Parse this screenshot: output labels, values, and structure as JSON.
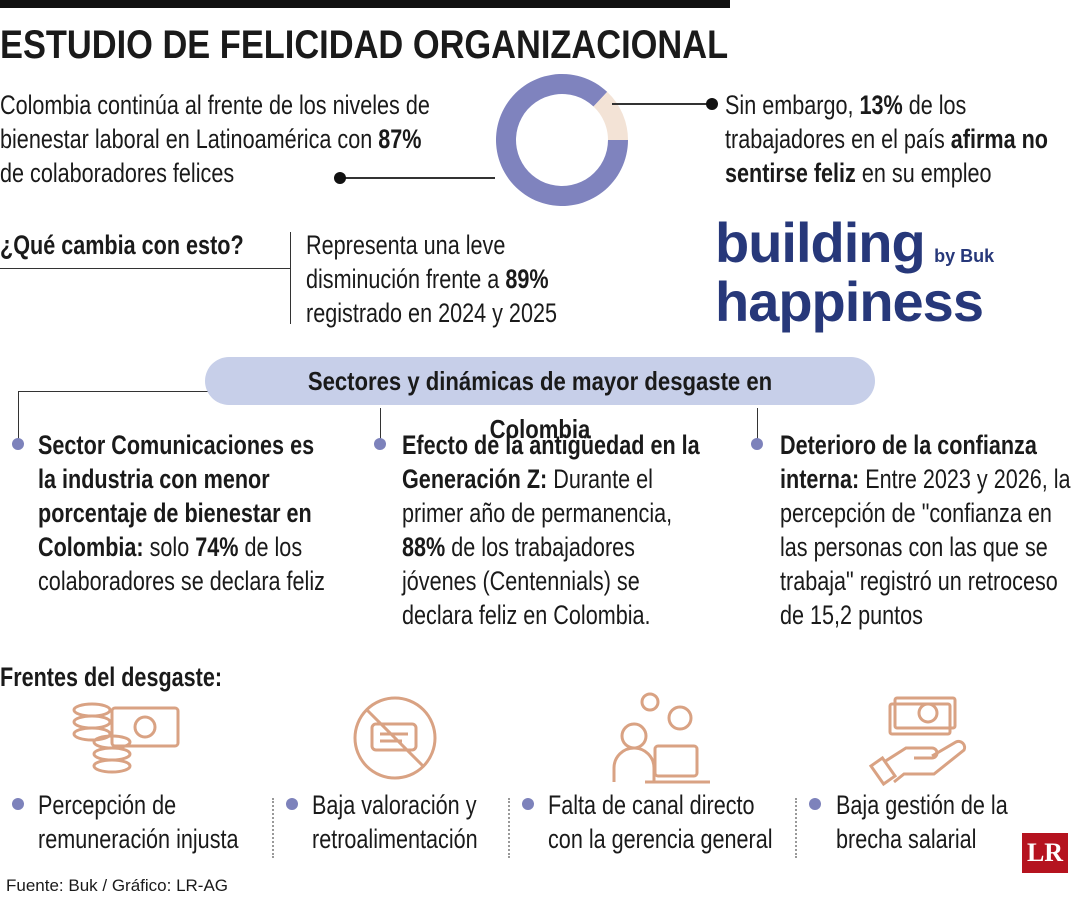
{
  "title": "ESTUDIO DE FELICIDAD ORGANIZACIONAL",
  "intro_left": [
    {
      "text": "Colombia continúa al frente de los niveles de bienestar laboral en Latinoamérica con ",
      "bold": false
    },
    {
      "text": "87%",
      "bold": true
    },
    {
      "text": " de colaboradores felices",
      "bold": false
    }
  ],
  "donut": {
    "values": [
      87,
      13
    ],
    "colors": [
      "#7f83be",
      "#f3e3d6"
    ]
  },
  "intro_right": [
    {
      "text": "Sin embargo, ",
      "bold": false
    },
    {
      "text": "13%",
      "bold": true
    },
    {
      "text": " de los trabajadores en el país ",
      "bold": false
    },
    {
      "text": "afirma no sentirse feliz",
      "bold": true
    },
    {
      "text": " en su empleo",
      "bold": false
    }
  ],
  "question": "¿Qué cambia con esto?",
  "answer": [
    {
      "text": "Representa una leve disminución frente a ",
      "bold": false
    },
    {
      "text": "89%",
      "bold": true
    },
    {
      "text": " registrado en 2024 y 2025",
      "bold": false
    }
  ],
  "logo": {
    "line1": "building",
    "by": "by Buk",
    "line2": "happiness"
  },
  "section_title": "Sectores y dinámicas de mayor desgaste en Colombia",
  "sectors": [
    [
      {
        "text": "Sector Comunicaciones es la industria con menor porcentaje de bienestar en Colombia:",
        "bold": true
      },
      {
        "text": " solo ",
        "bold": false
      },
      {
        "text": "74%",
        "bold": true
      },
      {
        "text": " de los colaboradores se declara feliz",
        "bold": false
      }
    ],
    [
      {
        "text": "Efecto de la antigüedad en la Generación Z:",
        "bold": true
      },
      {
        "text": " Durante el primer año de permanencia, ",
        "bold": false
      },
      {
        "text": "88%",
        "bold": true
      },
      {
        "text": " de los trabajadores jóvenes (Centennials) se declara feliz en Colombia.",
        "bold": false
      }
    ],
    [
      {
        "text": "Deterioro de la confianza interna:",
        "bold": true
      },
      {
        "text": " Entre 2023 y 2026, la percepción de \"confianza en las personas con las que se trabaja\" registró un retroceso de 15,2 puntos",
        "bold": false
      }
    ]
  ],
  "fronts_title": "Frentes del desgaste:",
  "fronts": [
    "Percepción de remuneración injusta",
    "Baja valoración y retroalimentación",
    "Falta de canal directo con la gerencia general",
    "Baja gestión de la brecha salarial"
  ],
  "source": "Fuente: Buk / Gráfico: LR-AG",
  "brand": "LR"
}
